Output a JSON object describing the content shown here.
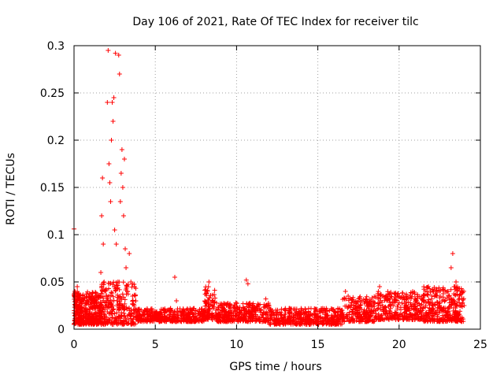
{
  "chart_data": {
    "type": "scatter",
    "title": "Day 106 of 2021, Rate Of TEC Index for receiver tilc",
    "xlabel": "GPS time / hours",
    "ylabel": "ROTI / TECUs",
    "xlim": [
      0,
      25
    ],
    "ylim": [
      0,
      0.3
    ],
    "x_ticks": [
      0,
      5,
      10,
      15,
      20,
      25
    ],
    "y_ticks": [
      0,
      0.05,
      0.1,
      0.15,
      0.2,
      0.25,
      0.3
    ],
    "grid": true,
    "point_color": "#ff0000",
    "marker": "plus",
    "series": [
      {
        "points": [
          [
            0.0,
            0.106
          ],
          [
            0.05,
            0.04
          ],
          [
            0.1,
            0.03
          ],
          [
            0.15,
            0.025
          ],
          [
            0.2,
            0.045
          ],
          [
            0.25,
            0.02
          ],
          [
            0.3,
            0.035
          ],
          [
            0.35,
            0.028
          ],
          [
            0.4,
            0.018
          ],
          [
            0.45,
            0.032
          ],
          [
            0.5,
            0.022
          ],
          [
            0.6,
            0.03
          ],
          [
            0.7,
            0.019
          ],
          [
            0.8,
            0.027
          ],
          [
            0.9,
            0.035
          ],
          [
            1.0,
            0.021
          ],
          [
            1.1,
            0.03
          ],
          [
            1.2,
            0.025
          ],
          [
            1.3,
            0.016
          ],
          [
            1.4,
            0.028
          ],
          [
            1.5,
            0.022
          ],
          [
            1.6,
            0.035
          ],
          [
            1.65,
            0.06
          ],
          [
            1.7,
            0.12
          ],
          [
            1.75,
            0.16
          ],
          [
            1.8,
            0.09
          ],
          [
            1.85,
            0.05
          ],
          [
            1.9,
            0.04
          ],
          [
            2.0,
            0.03
          ],
          [
            2.05,
            0.24
          ],
          [
            2.1,
            0.295
          ],
          [
            2.15,
            0.175
          ],
          [
            2.2,
            0.155
          ],
          [
            2.25,
            0.135
          ],
          [
            2.3,
            0.2
          ],
          [
            2.35,
            0.24
          ],
          [
            2.4,
            0.22
          ],
          [
            2.45,
            0.245
          ],
          [
            2.5,
            0.105
          ],
          [
            2.55,
            0.292
          ],
          [
            2.6,
            0.09
          ],
          [
            2.65,
            0.03
          ],
          [
            2.7,
            0.05
          ],
          [
            2.75,
            0.29
          ],
          [
            2.8,
            0.27
          ],
          [
            2.85,
            0.135
          ],
          [
            2.9,
            0.165
          ],
          [
            2.95,
            0.19
          ],
          [
            3.0,
            0.15
          ],
          [
            3.05,
            0.12
          ],
          [
            3.1,
            0.18
          ],
          [
            3.15,
            0.085
          ],
          [
            3.2,
            0.065
          ],
          [
            3.3,
            0.04
          ],
          [
            3.4,
            0.08
          ],
          [
            3.5,
            0.05
          ],
          [
            3.6,
            0.035
          ],
          [
            3.7,
            0.025
          ],
          [
            3.8,
            0.03
          ],
          [
            4.0,
            0.02
          ],
          [
            4.3,
            0.018
          ],
          [
            4.6,
            0.016
          ],
          [
            5.0,
            0.015
          ],
          [
            5.3,
            0.018
          ],
          [
            5.6,
            0.014
          ],
          [
            6.0,
            0.02
          ],
          [
            6.2,
            0.055
          ],
          [
            6.3,
            0.03
          ],
          [
            6.6,
            0.015
          ],
          [
            7.0,
            0.017
          ],
          [
            7.5,
            0.014
          ],
          [
            8.0,
            0.02
          ],
          [
            8.3,
            0.05
          ],
          [
            8.5,
            0.03
          ],
          [
            9.0,
            0.018
          ],
          [
            9.5,
            0.016
          ],
          [
            10.0,
            0.015
          ],
          [
            10.5,
            0.02
          ],
          [
            10.6,
            0.052
          ],
          [
            10.7,
            0.048
          ],
          [
            11.0,
            0.018
          ],
          [
            11.5,
            0.02
          ],
          [
            11.8,
            0.032
          ],
          [
            12.0,
            0.025
          ],
          [
            12.5,
            0.018
          ],
          [
            13.0,
            0.022
          ],
          [
            13.5,
            0.015
          ],
          [
            14.0,
            0.016
          ],
          [
            14.5,
            0.014
          ],
          [
            15.0,
            0.012
          ],
          [
            15.5,
            0.013
          ],
          [
            16.0,
            0.015
          ],
          [
            16.5,
            0.02
          ],
          [
            16.7,
            0.04
          ],
          [
            17.0,
            0.025
          ],
          [
            17.5,
            0.022
          ],
          [
            18.0,
            0.02
          ],
          [
            18.5,
            0.028
          ],
          [
            18.8,
            0.045
          ],
          [
            19.0,
            0.035
          ],
          [
            19.5,
            0.025
          ],
          [
            20.0,
            0.028
          ],
          [
            20.5,
            0.022
          ],
          [
            21.0,
            0.03
          ],
          [
            21.5,
            0.035
          ],
          [
            21.8,
            0.045
          ],
          [
            22.0,
            0.032
          ],
          [
            22.5,
            0.028
          ],
          [
            23.0,
            0.04
          ],
          [
            23.2,
            0.065
          ],
          [
            23.3,
            0.08
          ],
          [
            23.5,
            0.05
          ],
          [
            23.7,
            0.035
          ],
          [
            24.0,
            0.025
          ]
        ],
        "bands": [
          {
            "x0": 0.0,
            "x1": 1.7,
            "ymin": 0.005,
            "ymax": 0.04,
            "n": 420
          },
          {
            "x0": 1.7,
            "x1": 3.8,
            "ymin": 0.005,
            "ymax": 0.05,
            "n": 260
          },
          {
            "x0": 3.8,
            "x1": 8.0,
            "ymin": 0.008,
            "ymax": 0.022,
            "n": 420
          },
          {
            "x0": 8.0,
            "x1": 8.7,
            "ymin": 0.01,
            "ymax": 0.045,
            "n": 90
          },
          {
            "x0": 8.7,
            "x1": 12.0,
            "ymin": 0.008,
            "ymax": 0.028,
            "n": 360
          },
          {
            "x0": 12.0,
            "x1": 16.5,
            "ymin": 0.005,
            "ymax": 0.022,
            "n": 470
          },
          {
            "x0": 16.5,
            "x1": 18.5,
            "ymin": 0.008,
            "ymax": 0.035,
            "n": 220
          },
          {
            "x0": 18.5,
            "x1": 21.5,
            "ymin": 0.01,
            "ymax": 0.04,
            "n": 320
          },
          {
            "x0": 21.5,
            "x1": 24.0,
            "ymin": 0.008,
            "ymax": 0.045,
            "n": 330
          }
        ]
      }
    ]
  }
}
